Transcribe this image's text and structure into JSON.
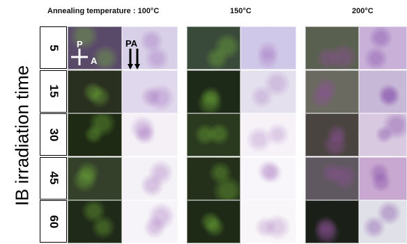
{
  "header": {
    "temperatures": [
      "Annealing temperature : 100°C",
      "150°C",
      "200°C"
    ]
  },
  "axis_label": "IB irradiation time",
  "rows": [
    "5",
    "15",
    "30",
    "45",
    "60"
  ],
  "overlay": {
    "polarizer": "P",
    "analyzer": "A",
    "parallel_label": "PA"
  }
}
